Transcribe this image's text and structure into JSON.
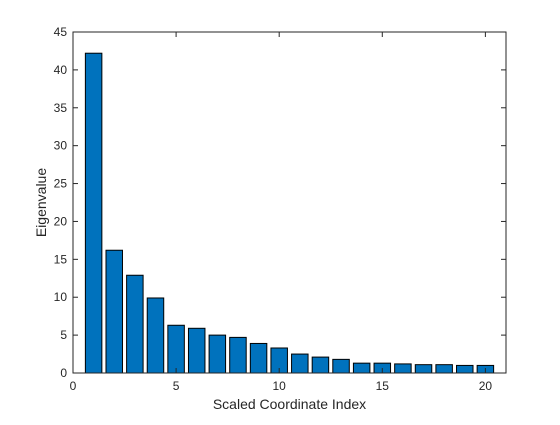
{
  "chart_data": {
    "type": "bar",
    "title": "",
    "xlabel": "Scaled Coordinate Index",
    "ylabel": "Eigenvalue",
    "categories": [
      1,
      2,
      3,
      4,
      5,
      6,
      7,
      8,
      9,
      10,
      11,
      12,
      13,
      14,
      15,
      16,
      17,
      18,
      19,
      20
    ],
    "values": [
      42.2,
      16.2,
      12.9,
      9.9,
      6.3,
      5.9,
      5.0,
      4.7,
      3.9,
      3.3,
      2.5,
      2.1,
      1.8,
      1.3,
      1.3,
      1.2,
      1.1,
      1.1,
      1.0,
      1.0
    ],
    "xlim": [
      0,
      21
    ],
    "ylim": [
      0,
      45
    ],
    "xticks": [
      0,
      5,
      10,
      15,
      20
    ],
    "yticks": [
      0,
      5,
      10,
      15,
      20,
      25,
      30,
      35,
      40,
      45
    ],
    "grid": false,
    "legend": "none",
    "colors": {
      "bar_fill": "#0072BD",
      "bar_edge": "#000000",
      "axis": "#262626"
    }
  }
}
